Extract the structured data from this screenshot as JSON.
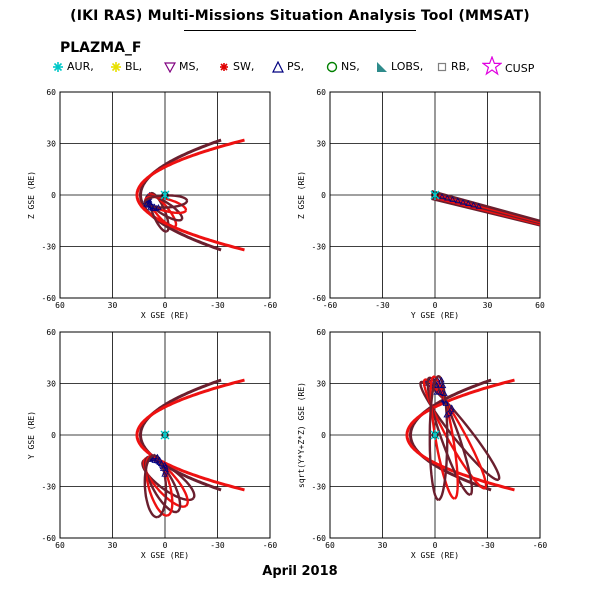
{
  "title": "(IKI RAS) Multi-Missions Situation Analysis Tool (MMSAT)",
  "satellite": "PLAZMA_F",
  "footer": "April 2018",
  "legend": [
    {
      "label": "AUR,",
      "symbol": "asterisk",
      "color": "#00c8c8"
    },
    {
      "label": "BL,",
      "symbol": "asterisk",
      "color": "#e8e000"
    },
    {
      "label": "MS,",
      "symbol": "triangle-down",
      "color": "#800080"
    },
    {
      "label": "SW,",
      "symbol": "asterisk",
      "color": "#e00000"
    },
    {
      "label": "PS,",
      "symbol": "triangle-up",
      "color": "#000080"
    },
    {
      "label": "NS,",
      "symbol": "circle",
      "color": "#008000"
    },
    {
      "label": "LOBS,",
      "symbol": "triangle-filled",
      "color": "#2e8b8b"
    },
    {
      "label": "RB,",
      "symbol": "square",
      "color": "#808080"
    },
    {
      "label": "CUSP",
      "symbol": "star",
      "color": "#e000e0"
    }
  ],
  "chart_data": [
    {
      "type": "scatter",
      "title": "",
      "xlabel": "X GSE (RE)",
      "ylabel": "Z GSE (RE)",
      "xlim": [
        60,
        -60
      ],
      "ylim": [
        -60,
        60
      ],
      "xticks": [
        "60",
        "30",
        "0",
        "-30",
        "-60"
      ],
      "yticks": [
        "-60",
        "-30",
        "0",
        "30",
        "60"
      ],
      "grid": true,
      "magnetopause": {
        "nose": -10,
        "flare": 0.06
      },
      "bowshock": {
        "nose": -14,
        "flare": 0.045
      },
      "orbit": {
        "center": [
          -6,
          -4
        ],
        "semi_major": 12,
        "semi_minor": 3.5,
        "tilt_deg": -38,
        "precess_deg": [
          -30,
          40
        ],
        "loops": 5
      }
    },
    {
      "type": "scatter",
      "title": "",
      "xlabel": "Y GSE (RE)",
      "ylabel": "Z GSE (RE)",
      "xlim": [
        -60,
        60
      ],
      "ylim": [
        -60,
        60
      ],
      "xticks": [
        "-60",
        "-30",
        "0",
        "30",
        "60"
      ],
      "yticks": [
        "-60",
        "-30",
        "0",
        "30",
        "60"
      ],
      "grid": true,
      "orbit_line": {
        "from": [
          -2,
          0
        ],
        "to": [
          70,
          -19
        ],
        "loops": 5
      }
    },
    {
      "type": "scatter",
      "title": "",
      "xlabel": "X GSE (RE)",
      "ylabel": "Y GSE (RE)",
      "xlim": [
        60,
        -60
      ],
      "ylim": [
        60,
        -60
      ],
      "xticks": [
        "60",
        "30",
        "0",
        "-30",
        "-60"
      ],
      "yticks": [
        "-60",
        "-30",
        "0",
        "30",
        "60"
      ],
      "grid": true,
      "magnetopause": {
        "nose": -10,
        "flare": 0.06
      },
      "bowshock": {
        "nose": -14,
        "flare": 0.045
      },
      "orbit": {
        "center": [
          -6,
          20
        ],
        "semi_major": 18,
        "semi_minor": 6,
        "tilt_deg": 62,
        "precess_deg": [
          -25,
          25
        ],
        "loops": 5
      }
    },
    {
      "type": "scatter",
      "title": "",
      "xlabel": "X GSE (RE)",
      "ylabel": "sqrt(Y*Y+Z*Z) GSE (RE)",
      "xlim": [
        60,
        -60
      ],
      "ylim": [
        60,
        -60
      ],
      "xticks": [
        "60",
        "30",
        "0",
        "-30",
        "-60"
      ],
      "yticks": [
        "-60",
        "-30",
        "0",
        "30",
        "60"
      ],
      "grid": true,
      "magnetopause": {
        "nose": -10,
        "flare": 0.06
      },
      "bowshock": {
        "nose": -14,
        "flare": 0.045
      },
      "orbit": {
        "center": [
          2,
          -18
        ],
        "semi_major": 36,
        "semi_minor": 5,
        "tilt_deg": 80,
        "precess_deg": [
          -28,
          10
        ],
        "loops": 5
      }
    }
  ]
}
